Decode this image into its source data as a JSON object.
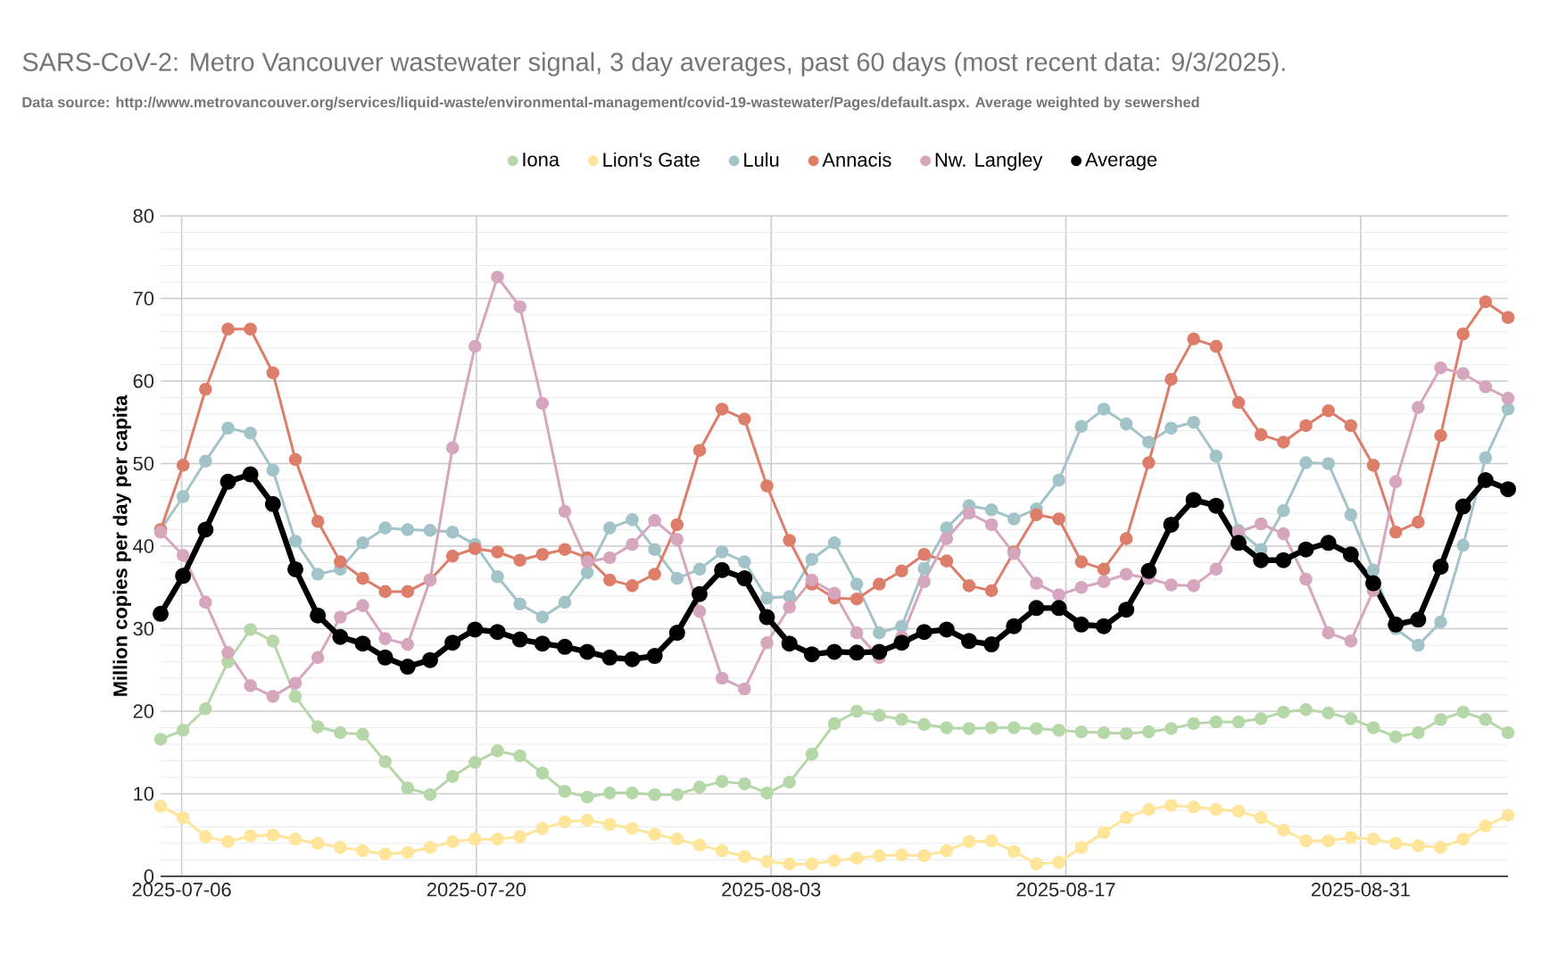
{
  "chart_data": {
    "type": "line",
    "title": "SARS-CoV-2: Metro Vancouver wastewater signal, 3 day averages, past 60 days (most recent data: 9/3/2025).",
    "subtitle": "Data source: http://www.metrovancouver.org/services/liquid-waste/environmental-management/covid-19-wastewater/Pages/default.aspx. Average weighted by sewershed",
    "ylabel": "Million copies per day per capita",
    "x": [
      "2025-07-05T00:00",
      "2025-07-06T01:36",
      "2025-07-07T03:12",
      "2025-07-08T04:48",
      "2025-07-09T06:24",
      "2025-07-10T08:00",
      "2025-07-11T09:36",
      "2025-07-12T11:12",
      "2025-07-13T12:48",
      "2025-07-14T14:24",
      "2025-07-15T16:00",
      "2025-07-16T17:36",
      "2025-07-17T19:12",
      "2025-07-18T20:48",
      "2025-07-19T22:24",
      "2025-07-21T00:00",
      "2025-07-22T01:36",
      "2025-07-23T03:12",
      "2025-07-24T04:48",
      "2025-07-25T06:24",
      "2025-07-26T08:00",
      "2025-07-27T09:36",
      "2025-07-28T11:12",
      "2025-07-29T12:48",
      "2025-07-30T14:24",
      "2025-07-31T16:00",
      "2025-08-01T17:36",
      "2025-08-02T19:12",
      "2025-08-03T20:48",
      "2025-08-04T22:24",
      "2025-08-06T00:00",
      "2025-08-07T01:36",
      "2025-08-08T03:12",
      "2025-08-09T04:48",
      "2025-08-10T06:24",
      "2025-08-11T08:00",
      "2025-08-12T09:36",
      "2025-08-13T11:12",
      "2025-08-14T12:48",
      "2025-08-15T14:24",
      "2025-08-16T16:00",
      "2025-08-17T17:36",
      "2025-08-18T19:12",
      "2025-08-19T20:48",
      "2025-08-20T22:24",
      "2025-08-22T00:00",
      "2025-08-23T01:36",
      "2025-08-24T03:12",
      "2025-08-25T04:48",
      "2025-08-26T06:24",
      "2025-08-27T08:00",
      "2025-08-28T09:36",
      "2025-08-29T11:12",
      "2025-08-30T12:48",
      "2025-08-31T14:24",
      "2025-09-01T16:00",
      "2025-09-02T17:36",
      "2025-09-03T19:12",
      "2025-09-04T20:48",
      "2025-09-05T22:24",
      "2025-09-07T00:00"
    ],
    "series": [
      {
        "name": "Iona",
        "color": "#b6d7a8",
        "values": [
          16.6,
          17.7,
          20.3,
          26.0,
          29.9,
          28.5,
          21.8,
          18.1,
          17.4,
          17.2,
          13.9,
          10.7,
          9.9,
          12.1,
          13.8,
          15.2,
          14.6,
          12.5,
          10.3,
          9.6,
          10.1,
          10.1,
          9.9,
          9.9,
          10.8,
          11.5,
          11.2,
          10.1,
          11.4,
          14.8,
          18.5,
          20.0,
          19.5,
          19.0,
          18.4,
          18.0,
          17.9,
          18.0,
          18.0,
          17.9,
          17.7,
          17.5,
          17.4,
          17.3,
          17.5,
          17.9,
          18.5,
          18.7,
          18.7,
          19.1,
          19.9,
          20.2,
          19.8,
          19.1,
          18.0,
          16.9,
          17.4,
          19.0,
          19.9,
          19.0,
          17.4
        ]
      },
      {
        "name": "Lion's Gate",
        "color": "#ffe599",
        "values": [
          8.5,
          7.1,
          4.8,
          4.2,
          4.9,
          5.0,
          4.5,
          4.0,
          3.5,
          3.1,
          2.7,
          2.9,
          3.5,
          4.2,
          4.5,
          4.5,
          4.8,
          5.8,
          6.6,
          6.8,
          6.3,
          5.8,
          5.1,
          4.5,
          3.8,
          3.1,
          2.4,
          1.8,
          1.5,
          1.5,
          1.9,
          2.2,
          2.5,
          2.6,
          2.5,
          3.1,
          4.2,
          4.3,
          3.0,
          1.5,
          1.7,
          3.5,
          5.3,
          7.1,
          8.1,
          8.6,
          8.4,
          8.1,
          7.9,
          7.1,
          5.6,
          4.3,
          4.3,
          4.7,
          4.5,
          4.0,
          3.7,
          3.5,
          4.5,
          6.1,
          7.4
        ]
      },
      {
        "name": "Lulu",
        "color": "#a2c4c9",
        "values": [
          42.0,
          46.0,
          50.3,
          54.3,
          53.7,
          49.2,
          40.6,
          36.6,
          37.2,
          40.4,
          42.2,
          42.0,
          41.9,
          41.7,
          40.2,
          36.3,
          33.0,
          31.4,
          33.2,
          36.8,
          42.2,
          43.2,
          39.6,
          36.1,
          37.2,
          39.3,
          38.1,
          33.7,
          33.9,
          38.4,
          40.4,
          35.4,
          29.5,
          30.3,
          37.3,
          42.2,
          44.9,
          44.4,
          43.3,
          44.5,
          48.0,
          54.5,
          56.6,
          54.8,
          52.6,
          54.3,
          55.0,
          50.9,
          41.9,
          39.6,
          44.3,
          50.1,
          50.0,
          43.8,
          37.1,
          30.0,
          28.0,
          30.8,
          40.1,
          50.7,
          56.6
        ]
      },
      {
        "name": "Annacis",
        "color": "#dd7e6b",
        "values": [
          42.0,
          49.8,
          59.0,
          66.3,
          66.3,
          61.0,
          50.5,
          43.0,
          38.1,
          36.1,
          34.5,
          34.5,
          35.9,
          38.8,
          39.7,
          39.3,
          38.3,
          39.0,
          39.6,
          38.6,
          35.9,
          35.2,
          36.6,
          42.6,
          51.6,
          56.6,
          55.4,
          47.3,
          40.7,
          35.4,
          33.7,
          33.6,
          35.4,
          37.0,
          39.0,
          38.2,
          35.2,
          34.6,
          39.3,
          43.8,
          43.3,
          38.1,
          37.2,
          40.9,
          50.1,
          60.2,
          65.1,
          64.2,
          57.4,
          53.5,
          52.6,
          54.6,
          56.4,
          54.6,
          49.8,
          41.7,
          42.9,
          53.4,
          65.7,
          69.6,
          67.7
        ]
      },
      {
        "name": "Nw. Langley",
        "color": "#d5a6bd",
        "values": [
          41.7,
          38.9,
          33.2,
          27.1,
          23.1,
          21.8,
          23.4,
          26.5,
          31.4,
          32.8,
          28.8,
          28.1,
          35.9,
          51.9,
          64.2,
          72.6,
          69.0,
          57.3,
          44.2,
          38.1,
          38.6,
          40.2,
          43.1,
          40.8,
          32.1,
          24.0,
          22.7,
          28.3,
          32.6,
          35.9,
          34.3,
          29.5,
          26.5,
          29.0,
          35.7,
          40.9,
          44.0,
          42.6,
          39.1,
          35.5,
          34.1,
          35.0,
          35.7,
          36.6,
          36.1,
          35.3,
          35.2,
          37.2,
          41.7,
          42.7,
          41.5,
          36.0,
          29.5,
          28.5,
          34.6,
          47.8,
          56.8,
          61.6,
          60.9,
          59.3,
          57.9
        ]
      },
      {
        "name": "Average",
        "color": "#000000",
        "values": [
          31.8,
          36.4,
          42.0,
          47.8,
          48.7,
          45.1,
          37.2,
          31.6,
          29.0,
          28.2,
          26.5,
          25.4,
          26.2,
          28.3,
          29.9,
          29.6,
          28.7,
          28.2,
          27.8,
          27.2,
          26.5,
          26.3,
          26.7,
          29.5,
          34.2,
          37.1,
          36.1,
          31.4,
          28.2,
          26.9,
          27.2,
          27.1,
          27.2,
          28.3,
          29.6,
          29.9,
          28.5,
          28.1,
          30.3,
          32.5,
          32.5,
          30.5,
          30.3,
          32.3,
          37.0,
          42.6,
          45.6,
          44.9,
          40.4,
          38.3,
          38.3,
          39.6,
          40.4,
          39.0,
          35.5,
          30.5,
          31.1,
          37.5,
          44.8,
          48.0,
          46.9
        ]
      }
    ],
    "xlim": [
      "2025-07-05",
      "2025-09-07"
    ],
    "xticks": [
      {
        "value": "2025-07-06",
        "label": "2025-07-06"
      },
      {
        "value": "2025-07-20",
        "label": "2025-07-20"
      },
      {
        "value": "2025-08-03",
        "label": "2025-08-03"
      },
      {
        "value": "2025-08-17",
        "label": "2025-08-17"
      },
      {
        "value": "2025-08-31",
        "label": "2025-08-31"
      }
    ],
    "ylim": [
      0,
      80
    ],
    "yticks": [
      0,
      10,
      20,
      30,
      40,
      50,
      60,
      70,
      80
    ],
    "grid": true,
    "legend": "top",
    "marker": "circle",
    "line_style": "solid"
  }
}
